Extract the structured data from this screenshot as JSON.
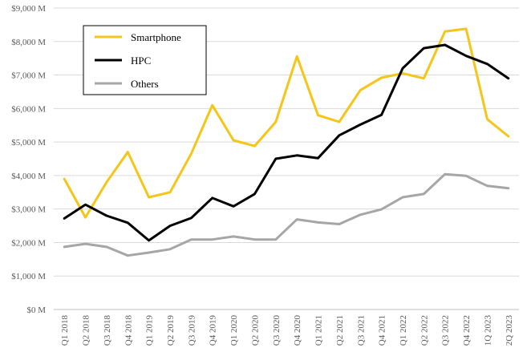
{
  "chart_data": {
    "type": "line",
    "title": "",
    "xlabel": "",
    "ylabel": "",
    "ylim": [
      0,
      9000
    ],
    "y_ticks": [
      0,
      1000,
      2000,
      3000,
      4000,
      5000,
      6000,
      7000,
      8000,
      9000
    ],
    "y_tick_labels": [
      "$0 M",
      "$1,000 M",
      "$2,000 M",
      "$3,000 M",
      "$4,000 M",
      "$5,000 M",
      "$6,000 M",
      "$7,000 M",
      "$8,000 M",
      "$9,000 M"
    ],
    "grid": "horizontal",
    "legend_position": "top-left",
    "categories": [
      "Q1 2018",
      "Q2 2018",
      "Q3 2018",
      "Q4 2018",
      "Q1 2019",
      "Q2 2019",
      "Q3 2019",
      "Q4 2019",
      "Q1 2020",
      "Q2 2020",
      "Q3 2020",
      "Q4 2020",
      "Q1 2021",
      "Q2 2021",
      "Q3 2021",
      "Q4 2021",
      "Q1 2022",
      "Q2 2022",
      "Q3 2022",
      "Q4 2022",
      "1Q 2023",
      "2Q 2023"
    ],
    "series": [
      {
        "name": "Smartphone",
        "color": "#F5C518",
        "values": [
          3900,
          2750,
          3800,
          4700,
          3350,
          3500,
          4650,
          6100,
          5050,
          4880,
          5600,
          7560,
          5800,
          5600,
          6550,
          6920,
          7050,
          6900,
          8300,
          8380,
          5680,
          5170
        ]
      },
      {
        "name": "HPC",
        "color": "#000000",
        "values": [
          2720,
          3130,
          2800,
          2590,
          2060,
          2500,
          2730,
          3330,
          3080,
          3450,
          4500,
          4600,
          4520,
          5200,
          5520,
          5810,
          7200,
          7800,
          7900,
          7570,
          7330,
          6900
        ]
      },
      {
        "name": "Others",
        "color": "#A6A6A6",
        "values": [
          1870,
          1960,
          1870,
          1610,
          1700,
          1800,
          2090,
          2090,
          2180,
          2090,
          2090,
          2690,
          2600,
          2550,
          2830,
          2990,
          3350,
          3450,
          4040,
          3990,
          3690,
          3620
        ]
      }
    ]
  }
}
